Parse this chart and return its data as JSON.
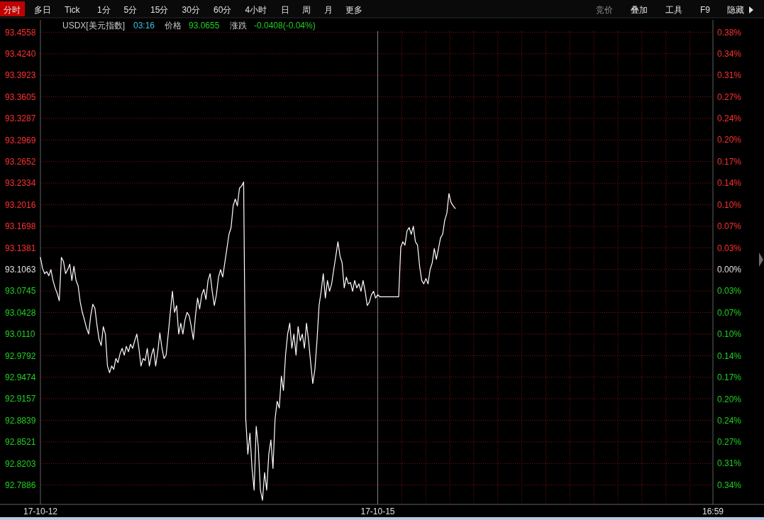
{
  "chart_data": {
    "type": "line",
    "title": "USDX[美元指数]",
    "subtitle": "03:16 价格 93.0655 涨跌 -0.0408(-0.04%)",
    "annotations": [
      "分时",
      "多日",
      "Tick",
      "1分",
      "5分",
      "15分",
      "30分",
      "60分",
      "4小时",
      "日",
      "周",
      "月",
      "更多",
      "竞价",
      "叠加",
      "工具",
      "F9",
      "隐藏"
    ],
    "categories": [
      "17-10-12",
      null,
      null,
      null,
      null,
      null,
      null,
      null,
      null,
      null,
      null,
      null,
      null,
      null,
      null,
      null,
      null,
      null,
      null,
      null,
      null,
      null,
      null,
      null,
      null,
      null,
      null,
      null,
      null,
      null,
      null,
      null,
      null,
      null,
      null,
      null,
      null,
      null,
      null,
      null,
      null,
      null,
      null,
      null,
      null,
      null,
      null,
      null,
      null,
      null,
      null,
      null,
      null,
      null,
      null,
      null,
      null,
      null,
      null,
      null,
      null,
      null,
      null,
      null,
      null,
      null,
      null,
      null,
      null,
      null,
      null,
      null,
      null,
      null,
      null,
      null,
      null,
      null,
      null,
      null,
      null,
      null,
      null,
      null,
      null,
      null,
      null,
      null,
      null,
      null,
      null,
      null,
      null,
      null,
      null,
      null,
      null,
      null,
      null,
      null,
      null,
      null,
      null,
      null,
      null,
      null,
      null,
      null,
      null,
      null,
      null,
      null,
      null,
      null,
      null,
      null,
      null,
      null,
      null,
      null,
      null,
      null,
      null,
      null,
      null,
      null,
      null,
      null,
      null,
      null,
      null,
      null,
      null,
      null,
      null,
      null,
      null,
      null,
      null,
      null,
      null,
      null,
      null,
      null,
      null,
      null,
      null,
      null,
      null,
      null,
      null,
      null,
      null,
      null,
      null,
      null,
      null,
      null,
      null,
      null,
      null,
      "17-10-15",
      null,
      null,
      null,
      null,
      null,
      null,
      null,
      null,
      null,
      null,
      null,
      null,
      null,
      null,
      null,
      null,
      null,
      null,
      null,
      null,
      null,
      null,
      null,
      null,
      null,
      null,
      null,
      null,
      null,
      null,
      null,
      null,
      null,
      null,
      null,
      null,
      null,
      null,
      null,
      null,
      null,
      null,
      null,
      null,
      null,
      null,
      null,
      null,
      null,
      null,
      null,
      null,
      null,
      null,
      null,
      null,
      null,
      null,
      null,
      null,
      null,
      null,
      null,
      null,
      null,
      null,
      null,
      null,
      null,
      null,
      null,
      null,
      null,
      null,
      null,
      null,
      null,
      null,
      null,
      null,
      null,
      null,
      null,
      null,
      null,
      null,
      null,
      null,
      null,
      null,
      null,
      null,
      null,
      null,
      null,
      null,
      null,
      null,
      null,
      null,
      null,
      null,
      null,
      null,
      null,
      null,
      null,
      null,
      null,
      null,
      null,
      null,
      null,
      null,
      null,
      null,
      null,
      null,
      null,
      null,
      null,
      null,
      null,
      null,
      null,
      null,
      null,
      null,
      null,
      null,
      null,
      null,
      null,
      null,
      null,
      null,
      null,
      null,
      null,
      null,
      null,
      null,
      null,
      null,
      null,
      null,
      null,
      null,
      null,
      null,
      null,
      null,
      null,
      null,
      null,
      null,
      null,
      null,
      null,
      "16:59"
    ],
    "ylim": [
      92.76,
      93.474
    ],
    "yticks": [
      93.4558,
      {
        "value": 93.424,
        "label": "93.4240"
      },
      93.3923,
      93.3605,
      93.3287,
      93.2969,
      93.2652,
      93.2334,
      93.2016,
      93.1698,
      93.1381,
      93.1063,
      93.0745,
      93.0428,
      {
        "value": 93.011,
        "label": "93.0110"
      },
      92.9792,
      92.9474,
      92.9157,
      92.8839,
      92.8521,
      92.8203,
      92.7886
    ],
    "y2lim": [
      -0.3719,
      0.3949
    ],
    "y2ticks": [
      {
        "value": 0.375,
        "label": "0.38%"
      },
      {
        "value": 0.341,
        "label": "0.34%"
      },
      {
        "value": 0.307,
        "label": "0.31%"
      },
      {
        "value": 0.273,
        "label": "0.27%"
      },
      {
        "value": 0.239,
        "label": "0.24%"
      },
      {
        "value": 0.205,
        "label": "0.20%"
      },
      {
        "value": 0.171,
        "label": "0.17%"
      },
      {
        "value": 0.137,
        "label": "0.14%"
      },
      {
        "value": 0.102,
        "label": "0.10%"
      },
      {
        "value": 0.068,
        "label": "0.07%"
      },
      {
        "value": 0.034,
        "label": "0.03%"
      },
      {
        "value": 0,
        "label": "0.00%"
      },
      {
        "value": -0.034,
        "label": "0.03%"
      },
      {
        "value": -0.068,
        "label": "0.07%"
      },
      {
        "value": -0.102,
        "label": "0.10%"
      },
      {
        "value": -0.137,
        "label": "0.14%"
      },
      {
        "value": -0.171,
        "label": "0.17%"
      },
      {
        "value": -0.205,
        "label": "0.20%"
      },
      {
        "value": -0.239,
        "label": "0.24%"
      },
      {
        "value": -0.273,
        "label": "0.27%"
      },
      {
        "value": -0.307,
        "label": "0.31%"
      },
      {
        "value": -0.341,
        "label": "0.34%"
      }
    ],
    "grid": true,
    "ref_lines": [
      {
        "axis": "x",
        "value": "17-10-15",
        "color": "#808080"
      }
    ],
    "series": [
      {
        "color": "#ffffff",
        "values": [
          93.124,
          93.108,
          93.1,
          93.103,
          93.097,
          93.106,
          93.09,
          93.079,
          93.071,
          93.06,
          93.124,
          93.118,
          93.1,
          93.106,
          93.114,
          93.09,
          93.111,
          93.09,
          93.082,
          93.058,
          93.043,
          93.032,
          93.02,
          93.011,
          93.038,
          93.055,
          93.049,
          93.024,
          93.003,
          92.994,
          93.022,
          93.011,
          92.964,
          92.954,
          92.964,
          92.959,
          92.975,
          92.969,
          92.982,
          92.99,
          92.98,
          92.993,
          92.985,
          92.996,
          92.99,
          93.001,
          93.011,
          92.99,
          92.964,
          92.975,
          92.972,
          92.99,
          92.964,
          92.98,
          92.99,
          92.964,
          92.985,
          93.013,
          92.99,
          92.975,
          92.98,
          93.011,
          93.043,
          93.074,
          93.043,
          93.053,
          93.011,
          93.027,
          93.011,
          93.032,
          93.043,
          93.038,
          93.022,
          93.003,
          93.038,
          93.064,
          93.048,
          93.069,
          93.077,
          93.062,
          93.09,
          93.1,
          93.074,
          93.053,
          93.069,
          93.095,
          93.106,
          93.095,
          93.116,
          93.137,
          93.158,
          93.168,
          93.2,
          93.21,
          93.2,
          93.226,
          93.229,
          93.235,
          92.886,
          92.834,
          92.865,
          92.813,
          92.781,
          92.875,
          92.844,
          92.781,
          92.766,
          92.807,
          92.781,
          92.834,
          92.855,
          92.813,
          92.886,
          92.912,
          92.902,
          92.949,
          92.928,
          92.98,
          93.011,
          93.027,
          92.99,
          93.011,
          92.98,
          93.022,
          93.001,
          93.011,
          92.99,
          93.027,
          93.001,
          92.969,
          92.938,
          92.959,
          93.001,
          93.053,
          93.074,
          93.1,
          93.064,
          93.09,
          93.074,
          93.085,
          93.106,
          93.126,
          93.147,
          93.126,
          93.116,
          93.079,
          93.095,
          93.085,
          93.087,
          93.074,
          93.09,
          93.079,
          93.085,
          93.074,
          93.09,
          93.074,
          93.053,
          93.058,
          93.069,
          93.074,
          93.064,
          93.069,
          93.066,
          93.066,
          93.066,
          93.066,
          93.066,
          93.066,
          93.066,
          93.066,
          93.066,
          93.066,
          93.139,
          93.147,
          93.142,
          93.163,
          93.168,
          93.158,
          93.17,
          93.147,
          93.142,
          93.111,
          93.09,
          93.085,
          93.093,
          93.085,
          93.106,
          93.116,
          93.137,
          93.121,
          93.137,
          93.153,
          93.158,
          93.179,
          93.189,
          93.218,
          93.205,
          93.2,
          93.196,
          null,
          null,
          null,
          null,
          null,
          null,
          null,
          null,
          null,
          null,
          null,
          null,
          null,
          null,
          null,
          null,
          null,
          null,
          null,
          null,
          null,
          null,
          null,
          null,
          null,
          null,
          null,
          null,
          null,
          null,
          null,
          null,
          null,
          null,
          null,
          null,
          null,
          null,
          null,
          null,
          null,
          null,
          null,
          null,
          null,
          null,
          null,
          null,
          null,
          null,
          null,
          null,
          null,
          null,
          null,
          null,
          null,
          null,
          null,
          null,
          null,
          null,
          null,
          null,
          null,
          null,
          null,
          null,
          null,
          null,
          null,
          null,
          null,
          null,
          null,
          null,
          null,
          null,
          null,
          null,
          null,
          null,
          null,
          null,
          null,
          null,
          null,
          null,
          null,
          null,
          null,
          null,
          null,
          null,
          null,
          null,
          null,
          null,
          null,
          null,
          null,
          null,
          null,
          null,
          null,
          null,
          null,
          null,
          null,
          null,
          null,
          null,
          null,
          null,
          null,
          null,
          null,
          null,
          null,
          null,
          null,
          null,
          null
        ]
      }
    ]
  }
}
